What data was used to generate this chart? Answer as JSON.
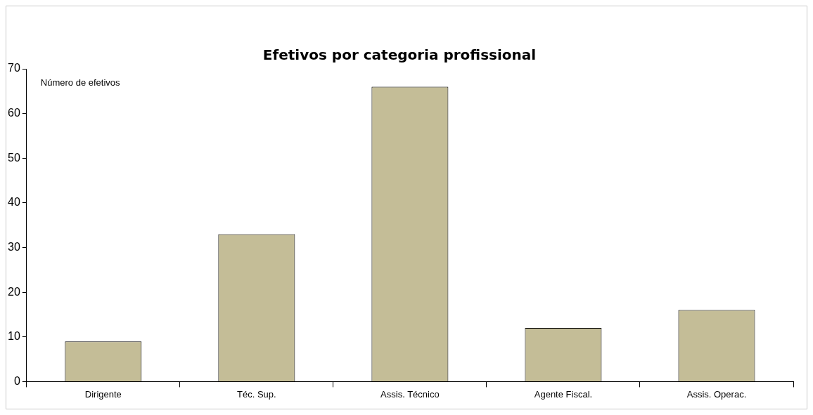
{
  "chart_data": {
    "type": "bar",
    "title": "Efetivos por categoria profissional",
    "categories": [
      "Dirigente",
      "Téc. Sup.",
      "Assis. Técnico",
      "Agente Fiscal.",
      "Assis. Operac."
    ],
    "values": [
      9,
      33,
      66,
      12,
      16
    ],
    "color": "#c4bd97",
    "ylim": [
      0,
      70
    ],
    "yticks": [
      0,
      10,
      20,
      30,
      40,
      50,
      60,
      70
    ],
    "grid": false,
    "annotations": [
      "Número de efetivos"
    ]
  }
}
